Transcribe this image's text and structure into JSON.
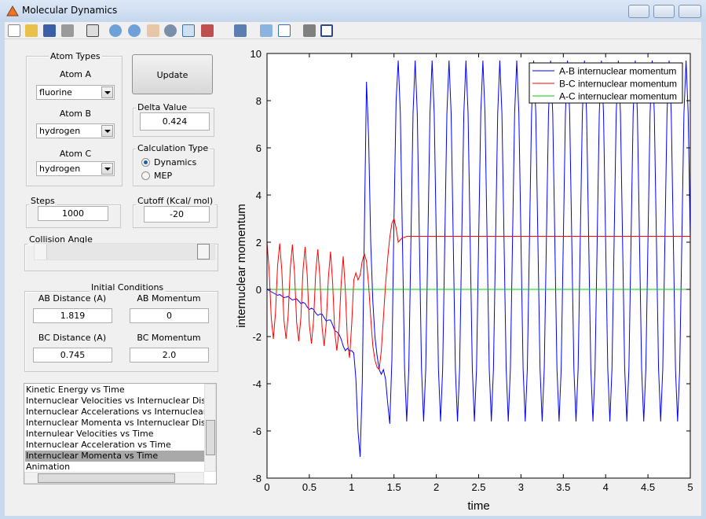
{
  "window": {
    "title": "Molecular Dynamics"
  },
  "atom_types": {
    "title": "Atom Types",
    "atoms": [
      {
        "label": "Atom A",
        "value": "fluorine"
      },
      {
        "label": "Atom B",
        "value": "hydrogen"
      },
      {
        "label": "Atom C",
        "value": "hydrogen"
      }
    ]
  },
  "update_button": "Update",
  "delta_value": {
    "title": "Delta Value",
    "value": "0.424"
  },
  "calculation_type": {
    "title": "Calculation Type",
    "options": [
      "Dynamics",
      "MEP"
    ],
    "selected": 0
  },
  "steps": {
    "title": "Steps",
    "value": "1000"
  },
  "cutoff": {
    "title": "Cutoff (Kcal/ mol)",
    "value": "-20"
  },
  "collision_angle": {
    "title": "Collision Angle"
  },
  "initial_conditions": {
    "title": "Initial Conditions",
    "fields": [
      {
        "label": "AB Distance (A)",
        "value": "1.819"
      },
      {
        "label": "AB Momentum",
        "value": "0"
      },
      {
        "label": "BC Distance (A)",
        "value": "0.745"
      },
      {
        "label": "BC Momentum",
        "value": "2.0"
      }
    ]
  },
  "plot_list": {
    "items": [
      "Kinetic Energy vs Time",
      "Internuclear Velocities vs Internuclear Distance",
      "Internuclear Accelerations vs Internuclear Dista",
      "Internuclear Momenta vs Internuclear Distance",
      "Internulear Velocities vs Time",
      "Internuclear Acceleration vs Time",
      "Internuclear Momenta vs Time",
      "Animation"
    ],
    "selected": 6
  },
  "chart_data": {
    "type": "line",
    "xlabel": "time",
    "ylabel": "internuclear momentum",
    "xlim": [
      0,
      5
    ],
    "ylim": [
      -8,
      10
    ],
    "xticks": [
      0,
      0.5,
      1,
      1.5,
      2,
      2.5,
      3,
      3.5,
      4,
      4.5,
      5
    ],
    "yticks": [
      -8,
      -6,
      -4,
      -2,
      0,
      2,
      4,
      6,
      8,
      10
    ],
    "legend": "northeast",
    "x": [
      0,
      0.025,
      0.05,
      0.075,
      0.1,
      0.125,
      0.15,
      0.175,
      0.2,
      0.225,
      0.25,
      0.275,
      0.3,
      0.325,
      0.35,
      0.375,
      0.4,
      0.425,
      0.45,
      0.475,
      0.5,
      0.525,
      0.55,
      0.575,
      0.6,
      0.625,
      0.65,
      0.675,
      0.7,
      0.725,
      0.75,
      0.775,
      0.8,
      0.825,
      0.85,
      0.875,
      0.9,
      0.925,
      0.95,
      0.975,
      1,
      1.025,
      1.05,
      1.075,
      1.1,
      1.125,
      1.15,
      1.175,
      1.2,
      1.225,
      1.25,
      1.275,
      1.3,
      1.325,
      1.35,
      1.375,
      1.4,
      1.425,
      1.45,
      1.475,
      1.5,
      1.525,
      1.55,
      1.575,
      1.6,
      1.625,
      1.65,
      1.675,
      1.7,
      1.725,
      1.75,
      1.775,
      1.8,
      1.825,
      1.85,
      1.875,
      1.9,
      1.925,
      1.95,
      1.975,
      2,
      2.025,
      2.05,
      2.075,
      2.1,
      2.125,
      2.15,
      2.175,
      2.2,
      2.225,
      2.25,
      2.275,
      2.3,
      2.325,
      2.35,
      2.375,
      2.4,
      2.425,
      2.45,
      2.475,
      2.5,
      2.525,
      2.55,
      2.575,
      2.6,
      2.625,
      2.65,
      2.675,
      2.7,
      2.725,
      2.75,
      2.775,
      2.8,
      2.825,
      2.85,
      2.875,
      2.9,
      2.925,
      2.95,
      2.975,
      3,
      3.025,
      3.05,
      3.075,
      3.1,
      3.125,
      3.15,
      3.175,
      3.2,
      3.225,
      3.25,
      3.275,
      3.3,
      3.325,
      3.35,
      3.375,
      3.4,
      3.425,
      3.45,
      3.475,
      3.5,
      3.525,
      3.55,
      3.575,
      3.6,
      3.625,
      3.65,
      3.675,
      3.7,
      3.725,
      3.75,
      3.775,
      3.8,
      3.825,
      3.85,
      3.875,
      3.9,
      3.925,
      3.95,
      3.975,
      4,
      4.025,
      4.05,
      4.075,
      4.1,
      4.125,
      4.15,
      4.175,
      4.2,
      4.225,
      4.25,
      4.275,
      4.3,
      4.325,
      4.35,
      4.375,
      4.4,
      4.425,
      4.45,
      4.475,
      4.5,
      4.525,
      4.55,
      4.575,
      4.6,
      4.625,
      4.65,
      4.675,
      4.7,
      4.725,
      4.75,
      4.775,
      4.8,
      4.825,
      4.85,
      4.875,
      4.9,
      4.925,
      4.95,
      4.975,
      5
    ],
    "series": [
      {
        "name": "A-B internuclear momentum",
        "color": "#0000ff",
        "values": [
          0,
          -0.05,
          -0.1,
          -0.15,
          -0.2,
          -0.25,
          -0.22,
          -0.28,
          -0.35,
          -0.33,
          -0.3,
          -0.38,
          -0.45,
          -0.42,
          -0.4,
          -0.5,
          -0.6,
          -0.55,
          -0.6,
          -0.75,
          -0.85,
          -0.8,
          -0.85,
          -1.0,
          -1.1,
          -1.05,
          -1.05,
          -1.2,
          -1.35,
          -1.3,
          -1.3,
          -1.5,
          -1.75,
          -1.8,
          -1.9,
          -2.1,
          -2.4,
          -2.6,
          -2.5,
          -2.6,
          -2.6,
          -2.7,
          -3.8,
          -6.0,
          -7.1,
          -4.0,
          2.5,
          8.8,
          6.5,
          2.0,
          -0.5,
          -2.0,
          -2.8,
          -3.4,
          -3.6,
          -3.4,
          -3.8,
          -4.8,
          -5.7,
          -3.0,
          3.0,
          8.0,
          9.7,
          7.46,
          2.05,
          -3.36,
          -5.6,
          -3.36,
          2.05,
          7.46,
          9.7,
          7.46,
          2.05,
          -3.36,
          -5.6,
          -3.36,
          2.05,
          7.46,
          9.7,
          7.46,
          2.05,
          -3.36,
          -5.6,
          -3.36,
          2.05,
          7.46,
          9.7,
          7.46,
          2.05,
          -3.36,
          -5.6,
          -3.36,
          2.05,
          7.46,
          9.7,
          7.46,
          2.05,
          -3.36,
          -5.6,
          -3.36,
          2.05,
          7.46,
          9.7,
          7.46,
          2.05,
          -3.36,
          -5.6,
          -3.36,
          2.05,
          7.46,
          9.7,
          7.46,
          2.05,
          -3.36,
          -5.6,
          -3.36,
          2.05,
          7.46,
          9.7,
          7.46,
          2.05,
          -3.36,
          -5.6,
          -3.36,
          2.05,
          7.46,
          9.7,
          7.46,
          2.05,
          -3.36,
          -5.6,
          -3.36,
          2.05,
          7.46,
          9.7,
          7.46,
          2.05,
          -3.36,
          -5.6,
          -3.36,
          2.05,
          7.46,
          9.7,
          7.46,
          2.05,
          -3.36,
          -5.6,
          -3.36,
          2.05,
          7.46,
          9.7,
          7.46,
          2.05,
          -3.36,
          -5.6,
          -3.36,
          2.05,
          7.46,
          9.7,
          7.46,
          2.05,
          -3.36,
          -5.6,
          -3.36,
          2.05,
          7.46,
          9.7,
          7.46,
          2.05,
          -3.36,
          -5.6,
          -3.36,
          2.05,
          7.46,
          9.7,
          7.46,
          2.05,
          -3.36,
          -5.6,
          -3.36,
          2.05,
          7.46,
          9.7,
          7.46,
          2.05,
          -3.36,
          -5.6,
          -3.36,
          2.05,
          7.46,
          9.7,
          7.46,
          2.05,
          -3.36,
          -5.6,
          -3.36,
          2.05,
          7.46,
          9.7,
          7.46,
          2.05
        ]
      },
      {
        "name": "B-C internuclear momentum",
        "color": "#ff0000",
        "values": [
          2.0,
          0.8,
          -1.2,
          -2.1,
          -1.0,
          1.0,
          1.95,
          0.8,
          -1.3,
          -2.1,
          -1.1,
          0.9,
          1.9,
          0.7,
          -1.4,
          -2.2,
          -1.2,
          0.8,
          1.8,
          0.6,
          -1.5,
          -2.3,
          -1.3,
          0.7,
          1.7,
          0.5,
          -1.6,
          -2.4,
          -1.4,
          0.5,
          1.6,
          0.3,
          -1.8,
          -2.6,
          -1.7,
          0.2,
          1.4,
          0.0,
          -2.2,
          -2.9,
          -1.5,
          0.4,
          0.7,
          0.4,
          0.6,
          1.2,
          1.5,
          1.2,
          0.2,
          -1.2,
          -2.4,
          -3.0,
          -3.3,
          -3.4,
          -2.6,
          -1.2,
          0.2,
          1.3,
          2.2,
          2.8,
          3.0,
          2.6,
          2.0,
          2.1,
          2.2,
          2.2,
          2.25,
          2.25,
          2.25,
          2.25,
          2.25,
          2.25,
          2.25,
          2.25,
          2.25,
          2.25,
          2.25,
          2.25,
          2.25,
          2.25,
          2.25,
          2.25,
          2.25,
          2.25,
          2.25,
          2.25,
          2.25,
          2.25,
          2.25,
          2.25,
          2.25,
          2.25,
          2.25,
          2.25,
          2.25,
          2.25,
          2.25,
          2.25,
          2.25,
          2.25,
          2.25,
          2.25,
          2.25,
          2.25,
          2.25,
          2.25,
          2.25,
          2.25,
          2.25,
          2.25,
          2.25,
          2.25,
          2.25,
          2.25,
          2.25,
          2.25,
          2.25,
          2.25,
          2.25,
          2.25,
          2.25,
          2.25,
          2.25,
          2.25,
          2.25,
          2.25,
          2.25,
          2.25,
          2.25,
          2.25,
          2.25,
          2.25,
          2.25,
          2.25,
          2.25,
          2.25,
          2.25,
          2.25,
          2.25,
          2.25,
          2.25,
          2.25,
          2.25,
          2.25,
          2.25,
          2.25,
          2.25,
          2.25,
          2.25,
          2.25,
          2.25,
          2.25,
          2.25,
          2.25,
          2.25,
          2.25,
          2.25,
          2.25,
          2.25,
          2.25,
          2.25,
          2.25,
          2.25,
          2.25,
          2.25,
          2.25,
          2.25,
          2.25,
          2.25,
          2.25,
          2.25,
          2.25,
          2.25,
          2.25,
          2.25,
          2.25,
          2.25,
          2.25,
          2.25,
          2.25,
          2.25,
          2.25,
          2.25,
          2.25,
          2.25,
          2.25,
          2.25,
          2.25,
          2.25,
          2.25,
          2.25,
          2.25,
          2.25,
          2.25,
          2.25,
          2.25,
          2.25,
          2.25,
          2.25,
          2.25,
          2.25
        ]
      },
      {
        "name": "A-C internuclear momentum",
        "color": "#00cc00",
        "values": [
          0,
          0,
          0,
          0,
          0,
          0,
          0,
          0,
          0,
          0,
          0,
          0,
          0,
          0,
          0,
          0,
          0,
          0,
          0,
          0,
          0,
          0,
          0,
          0,
          0,
          0,
          0,
          0,
          0,
          0,
          0,
          0,
          0,
          0,
          0,
          0,
          0,
          0,
          0,
          0,
          0,
          0,
          0,
          0,
          0,
          0,
          0,
          0,
          0,
          0,
          0,
          0,
          0,
          0,
          0,
          0,
          0,
          0,
          0,
          0,
          0,
          0,
          0,
          0,
          0,
          0,
          0,
          0,
          0,
          0,
          0,
          0,
          0,
          0,
          0,
          0,
          0,
          0,
          0,
          0,
          0,
          0,
          0,
          0,
          0,
          0,
          0,
          0,
          0,
          0,
          0,
          0,
          0,
          0,
          0,
          0,
          0,
          0,
          0,
          0,
          0,
          0,
          0,
          0,
          0,
          0,
          0,
          0,
          0,
          0,
          0,
          0,
          0,
          0,
          0,
          0,
          0,
          0,
          0,
          0,
          0,
          0,
          0,
          0,
          0,
          0,
          0,
          0,
          0,
          0,
          0,
          0,
          0,
          0,
          0,
          0,
          0,
          0,
          0,
          0,
          0,
          0,
          0,
          0,
          0,
          0,
          0,
          0,
          0,
          0,
          0,
          0,
          0,
          0,
          0,
          0,
          0,
          0,
          0,
          0,
          0,
          0,
          0,
          0,
          0,
          0,
          0,
          0,
          0,
          0,
          0,
          0,
          0,
          0,
          0,
          0,
          0,
          0,
          0,
          0,
          0,
          0,
          0,
          0,
          0,
          0,
          0,
          0,
          0,
          0,
          0,
          0,
          0,
          0,
          0,
          0,
          0,
          0,
          0,
          0,
          0
        ]
      }
    ]
  }
}
